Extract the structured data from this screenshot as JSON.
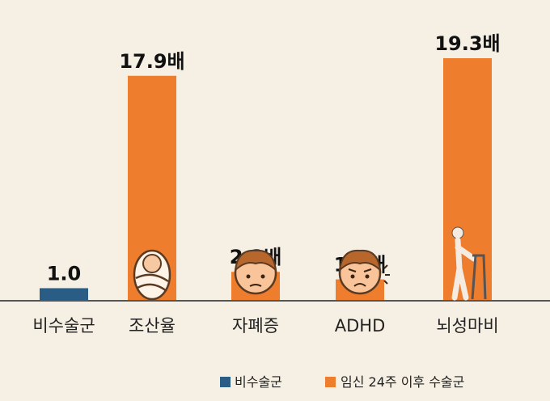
{
  "chart_data": {
    "type": "bar",
    "categories": [
      "비수술군",
      "조산율",
      "자폐증",
      "ADHD",
      "뇌성마비"
    ],
    "values": [
      1.0,
      17.9,
      2.3,
      1.7,
      19.3
    ],
    "value_labels": [
      "1.0",
      "17.9배",
      "2.3배",
      "1.7배",
      "19.3배"
    ],
    "bar_series": [
      0,
      1,
      1,
      1,
      1
    ],
    "icons": [
      "",
      "swaddled-baby-icon",
      "worried-child-icon",
      "frowning-child-icon",
      "walker-person-icon"
    ],
    "series": [
      {
        "name": "비수술군",
        "color": "#2a5d86"
      },
      {
        "name": "임신 24주 이후 수술군",
        "color": "#ee7d2d"
      }
    ],
    "legend_position": "bottom-right",
    "grid": false
  }
}
